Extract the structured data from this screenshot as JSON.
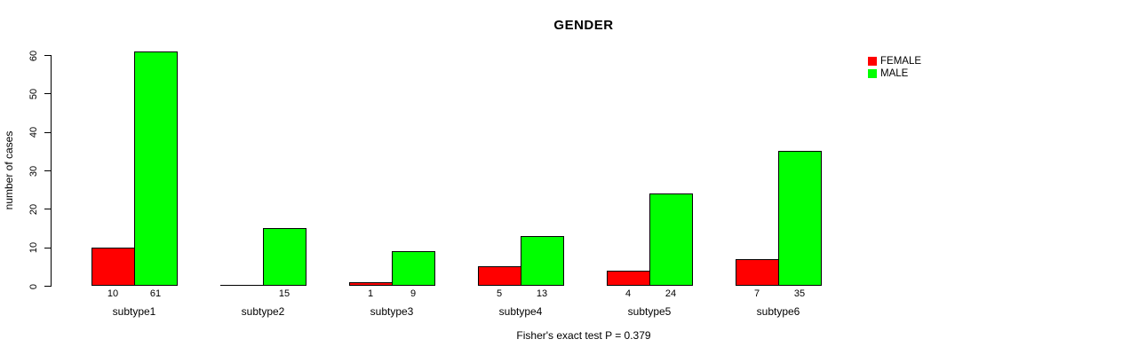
{
  "chart_data": {
    "type": "bar",
    "grouped": true,
    "title": "GENDER",
    "xlabel": "",
    "ylabel": "number of cases",
    "categories": [
      "subtype1",
      "subtype2",
      "subtype3",
      "subtype4",
      "subtype5",
      "subtype6"
    ],
    "series": [
      {
        "name": "FEMALE",
        "color": "#ff0000",
        "values": [
          10,
          0,
          1,
          5,
          4,
          7
        ]
      },
      {
        "name": "MALE",
        "color": "#00ff00",
        "values": [
          61,
          15,
          9,
          13,
          24,
          35
        ]
      }
    ],
    "ylim": [
      0,
      60
    ],
    "yticks": [
      0,
      10,
      20,
      30,
      40,
      50,
      60
    ],
    "bar_value_labels": true,
    "hide_zero_value_labels": true,
    "grid": false,
    "legend_position": "top-right",
    "annotation": "Fisher's exact test P = 0.379",
    "axis_color": "#000000",
    "bar_border_color": "#000000"
  }
}
